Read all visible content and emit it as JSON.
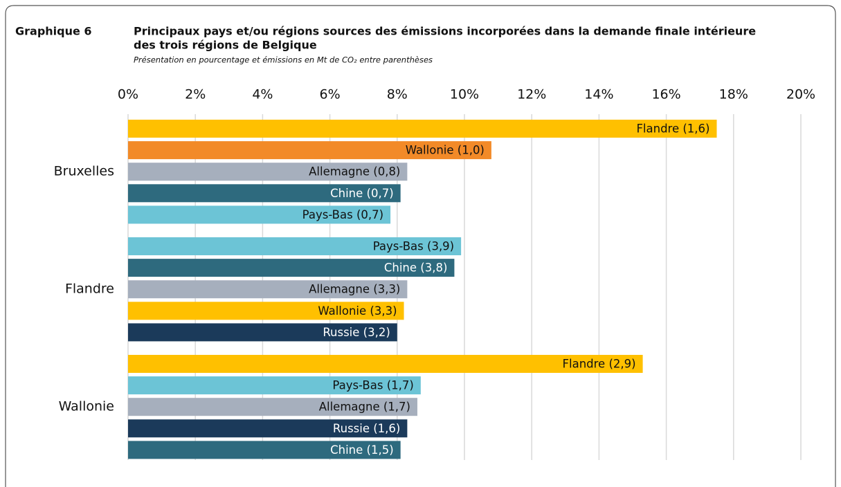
{
  "chart_data": {
    "type": "hbar_grouped",
    "label": "Graphique 6",
    "title": [
      "Principaux pays et/ou régions sources des émissions incorporées dans la demande finale intérieure",
      "des trois régions de Belgique"
    ],
    "subtitle": "Présentation en pourcentage et émissions en Mt de CO₂ entre parenthèses",
    "groups": [
      {
        "name": "Bruxelles",
        "bars": [
          {
            "label": "Flandre (1,6)",
            "value": 17.5,
            "color": "#FFC000"
          },
          {
            "label": "Wallonie (1,0)",
            "value": 10.8,
            "color": "#F28A28"
          },
          {
            "label": "Allemagne (0,8)",
            "value": 8.3,
            "color": "#A6AFBD"
          },
          {
            "label": "Chine (0,7)",
            "value": 8.1,
            "color": "#2E6A7E"
          },
          {
            "label": "Pays-Bas (0,7)",
            "value": 7.8,
            "color": "#6CC4D6"
          }
        ]
      },
      {
        "name": "Flandre",
        "bars": [
          {
            "label": "Pays-Bas (3,9)",
            "value": 9.9,
            "color": "#6CC4D6"
          },
          {
            "label": "Chine (3,8)",
            "value": 9.7,
            "color": "#2E6A7E"
          },
          {
            "label": "Allemagne (3,3)",
            "value": 8.3,
            "color": "#A6AFBD"
          },
          {
            "label": "Wallonie (3,3)",
            "value": 8.2,
            "color": "#FFC000"
          },
          {
            "label": "Russie (3,2)",
            "value": 8.0,
            "color": "#1B3A5A"
          }
        ]
      },
      {
        "name": "Wallonie",
        "bars": [
          {
            "label": "Flandre (2,9)",
            "value": 15.3,
            "color": "#FFC000"
          },
          {
            "label": "Pays-Bas (1,7)",
            "value": 8.7,
            "color": "#6CC4D6"
          },
          {
            "label": "Allemagne (1,7)",
            "value": 8.6,
            "color": "#A6AFBD"
          },
          {
            "label": "Russie (1,6)",
            "value": 8.3,
            "color": "#1B3A5A"
          },
          {
            "label": "Chine (1,5)",
            "value": 8.1,
            "color": "#2E6A7E"
          }
        ]
      }
    ],
    "xlim": [
      0,
      20
    ],
    "xticks": [
      {
        "value": 0,
        "label": "0%"
      },
      {
        "value": 2,
        "label": "2%"
      },
      {
        "value": 4,
        "label": "4%"
      },
      {
        "value": 6,
        "label": "6%"
      },
      {
        "value": 8,
        "label": "8%"
      },
      {
        "value": 10,
        "label": "10%"
      },
      {
        "value": 12,
        "label": "12%"
      },
      {
        "value": 14,
        "label": "14%"
      },
      {
        "value": 16,
        "label": "16%"
      },
      {
        "value": 18,
        "label": "18%"
      },
      {
        "value": 20,
        "label": "20%"
      }
    ],
    "grid": true
  }
}
